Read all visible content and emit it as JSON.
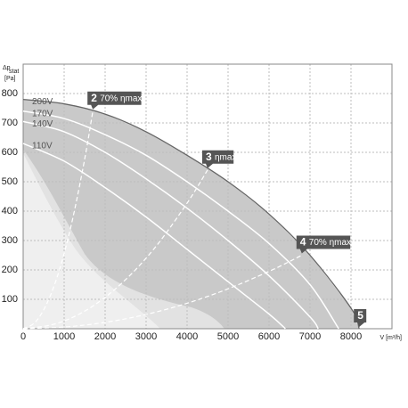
{
  "chart_data": {
    "type": "line",
    "y_label": "Δp",
    "y_label_sub": "stat",
    "y_label_unit": "[Pa]",
    "x_label": "V [m³/h]",
    "xlim": [
      0,
      9000
    ],
    "xticks": [
      0,
      1000,
      2000,
      3000,
      4000,
      5000,
      6000,
      7000,
      8000
    ],
    "ylim": [
      0,
      900
    ],
    "yticks": [
      100,
      200,
      300,
      400,
      500,
      600,
      700,
      800
    ],
    "grid": true,
    "area_color": "#c9c9c9",
    "series": [
      {
        "name": "200V",
        "color": "#666666",
        "x": [
          0,
          1000,
          2000,
          3000,
          4000,
          5000,
          6000,
          7000,
          8000,
          8200
        ],
        "values": [
          780,
          765,
          730,
          670,
          590,
          500,
          390,
          250,
          70,
          0
        ]
      },
      {
        "name": "170V",
        "color": "#ffffff",
        "x": [
          0,
          1000,
          2000,
          3000,
          4000,
          5000,
          6000,
          7000,
          7700
        ],
        "values": [
          740,
          715,
          660,
          590,
          500,
          400,
          290,
          150,
          0
        ]
      },
      {
        "name": "140V",
        "color": "#ffffff",
        "x": [
          0,
          1000,
          2000,
          3000,
          4000,
          5000,
          6000,
          7000,
          7200
        ],
        "values": [
          705,
          670,
          600,
          510,
          410,
          300,
          180,
          40,
          0
        ]
      },
      {
        "name": "110V",
        "color": "#ffffff",
        "x": [
          0,
          1000,
          2000,
          3000,
          4000,
          5000,
          6000,
          6400
        ],
        "values": [
          630,
          570,
          480,
          380,
          270,
          160,
          50,
          0
        ]
      }
    ],
    "guides": [
      {
        "x": [
          300,
          600,
          900,
          1200,
          1500,
          1700
        ],
        "values": [
          23,
          92,
          207,
          369,
          576,
          740
        ]
      },
      {
        "x": [
          800,
          1600,
          2400,
          3200,
          4000,
          4500
        ],
        "values": [
          17,
          68,
          154,
          273,
          427,
          540
        ]
      },
      {
        "x": [
          1200,
          2400,
          3600,
          4800,
          6000,
          6800
        ],
        "values": [
          8,
          31,
          70,
          125,
          195,
          250
        ]
      }
    ],
    "annotations": [
      {
        "number": "2",
        "text": "70% ηmax",
        "x": 1700,
        "y": 740
      },
      {
        "number": "3",
        "text": "ηmax",
        "x": 4500,
        "y": 540
      },
      {
        "number": "4",
        "text": "70% ηmax",
        "x": 6800,
        "y": 250
      },
      {
        "number": "5",
        "x": 8200,
        "y": 0
      }
    ]
  }
}
